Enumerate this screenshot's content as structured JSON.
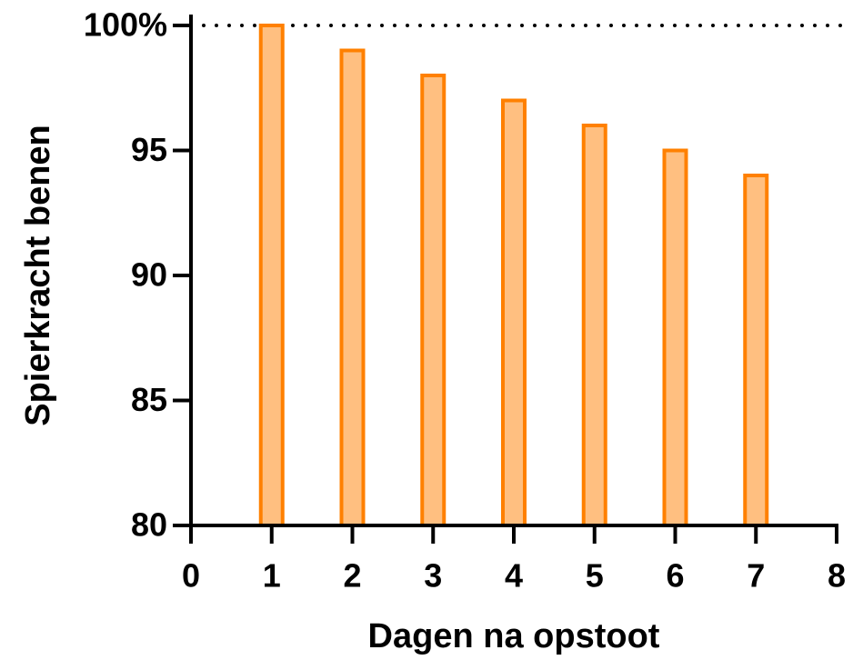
{
  "chart_data": {
    "type": "bar",
    "x": [
      1,
      2,
      3,
      4,
      5,
      6,
      7
    ],
    "values": [
      100,
      99,
      98,
      97,
      96,
      95,
      94
    ],
    "color": "#ffbf80",
    "edge_color": "#ff8000",
    "xlabel": "Dagen na opstoot",
    "ylabel": "Spierkracht benen",
    "xlim": [
      0,
      8
    ],
    "xticks": [
      0,
      1,
      2,
      3,
      4,
      5,
      6,
      7,
      8
    ],
    "ylim": [
      80,
      100
    ],
    "yticks": [
      80,
      85,
      90,
      95,
      {
        "value": 100,
        "label": "100%"
      }
    ],
    "reference_line": 100
  }
}
